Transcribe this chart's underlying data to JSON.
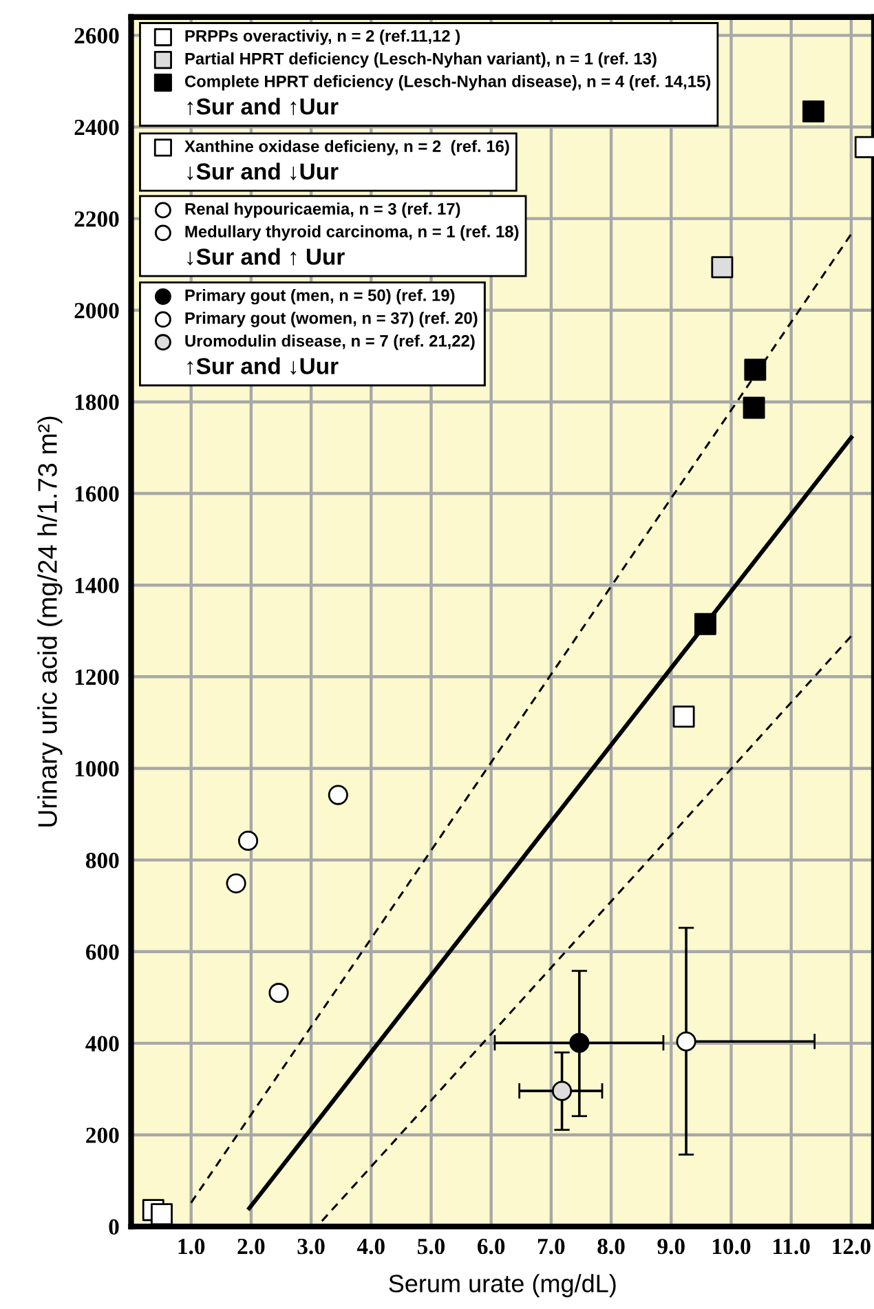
{
  "chart_data": {
    "type": "scatter",
    "xlabel": "Serum urate (mg/dL)",
    "ylabel": "Urinary uric acid (mg/24 h/1.73 m²)",
    "xlim": [
      0,
      12.38
    ],
    "ylim": [
      0,
      2640
    ],
    "xticks": [
      {
        "value": 1,
        "label": "1.0"
      },
      {
        "value": 2,
        "label": "2.0"
      },
      {
        "value": 3,
        "label": "3.0"
      },
      {
        "value": 4,
        "label": "4.0"
      },
      {
        "value": 5,
        "label": "5.0"
      },
      {
        "value": 6,
        "label": "6.0"
      },
      {
        "value": 7,
        "label": "7.0"
      },
      {
        "value": 8,
        "label": "8.0"
      },
      {
        "value": 9,
        "label": "9.0"
      },
      {
        "value": 10,
        "label": "10.0"
      },
      {
        "value": 11,
        "label": "11.0"
      },
      {
        "value": 12,
        "label": "12.0"
      }
    ],
    "yticks": [
      0,
      200,
      400,
      600,
      800,
      1000,
      1200,
      1400,
      1600,
      1800,
      2000,
      2200,
      2400,
      2600
    ],
    "grid": true,
    "legend": "top left",
    "annotations": [
      "↑Sur and ↑Uur",
      "↓Sur and ↓Uur",
      "↓Sur and ↑ Uur",
      "↑Sur and ↓Uur"
    ],
    "series": [
      {
        "name": "PRPPs overactiviy, n = 2 (ref.11,12 )",
        "marker": "square",
        "color": "#ffffff",
        "x": [
          9.21,
          12.24
        ],
        "values": [
          1113,
          2356
        ]
      },
      {
        "name": "Partial HPRT deficiency (Lesch-Nyhan variant), n = 1 (ref. 13)",
        "marker": "square",
        "color": "#dddddd",
        "x": [
          9.85
        ],
        "values": [
          2094
        ]
      },
      {
        "name": "Complete HPRT deficiency (Lesch-Nyhan disease), n = 4 (ref. 14,15)",
        "marker": "square",
        "color": "#000000",
        "x": [
          9.57,
          10.4,
          10.38,
          11.37
        ],
        "values": [
          1315,
          1870,
          1787,
          2434
        ]
      },
      {
        "name": "Xanthine oxidase deficieny, n = 2  (ref. 16)",
        "marker": "square",
        "color": "#ffffff",
        "x": [
          0.37,
          0.51
        ],
        "values": [
          36,
          27
        ]
      },
      {
        "name": "Renal hypouricaemia, n = 3 (ref. 17)",
        "marker": "circle",
        "color": "#ffffff",
        "x": [
          1.75,
          1.95,
          3.45
        ],
        "values": [
          749,
          842,
          942
        ]
      },
      {
        "name": "Medullary thyroid carcinoma, n = 1 (ref. 18)",
        "marker": "circle",
        "color": "#ffffff",
        "x": [
          2.46
        ],
        "values": [
          510
        ]
      },
      {
        "name": "Primary gout (men, n = 50) (ref. 19)",
        "marker": "circle",
        "color": "#000000",
        "x": [
          7.47
        ],
        "values": [
          401
        ],
        "errors": [
          [
            241,
            558
          ]
        ],
        "xerrors": [
          [
            6.06,
            8.87
          ]
        ]
      },
      {
        "name": "Primary gout (women, n = 37) (ref. 20)",
        "marker": "circle",
        "color": "#ffffff",
        "x": [
          9.25
        ],
        "values": [
          404
        ],
        "errors": [
          [
            157,
            652
          ]
        ],
        "xerrors": [
          [
            9.25,
            11.39
          ]
        ]
      },
      {
        "name": "Uromodulin disease, n = 7 (ref. 21,22)",
        "marker": "circle",
        "color": "#dddddd",
        "x": [
          7.18
        ],
        "values": [
          296
        ],
        "errors": [
          [
            211,
            380
          ]
        ],
        "xerrors": [
          [
            6.47,
            7.85
          ]
        ]
      },
      {
        "type": "line",
        "line_style": "solid",
        "color": "#000000",
        "x": [
          1.97,
          12.0
        ],
        "values": [
          40,
          1722
        ]
      },
      {
        "type": "line",
        "line_style": "dashed",
        "color": "#000000",
        "x": [
          1.0,
          12.03
        ],
        "values": [
          52,
          2172
        ]
      },
      {
        "type": "line",
        "line_style": "dashed",
        "color": "#000000",
        "x": [
          3.18,
          12.05
        ],
        "values": [
          12,
          1296
        ]
      }
    ]
  }
}
